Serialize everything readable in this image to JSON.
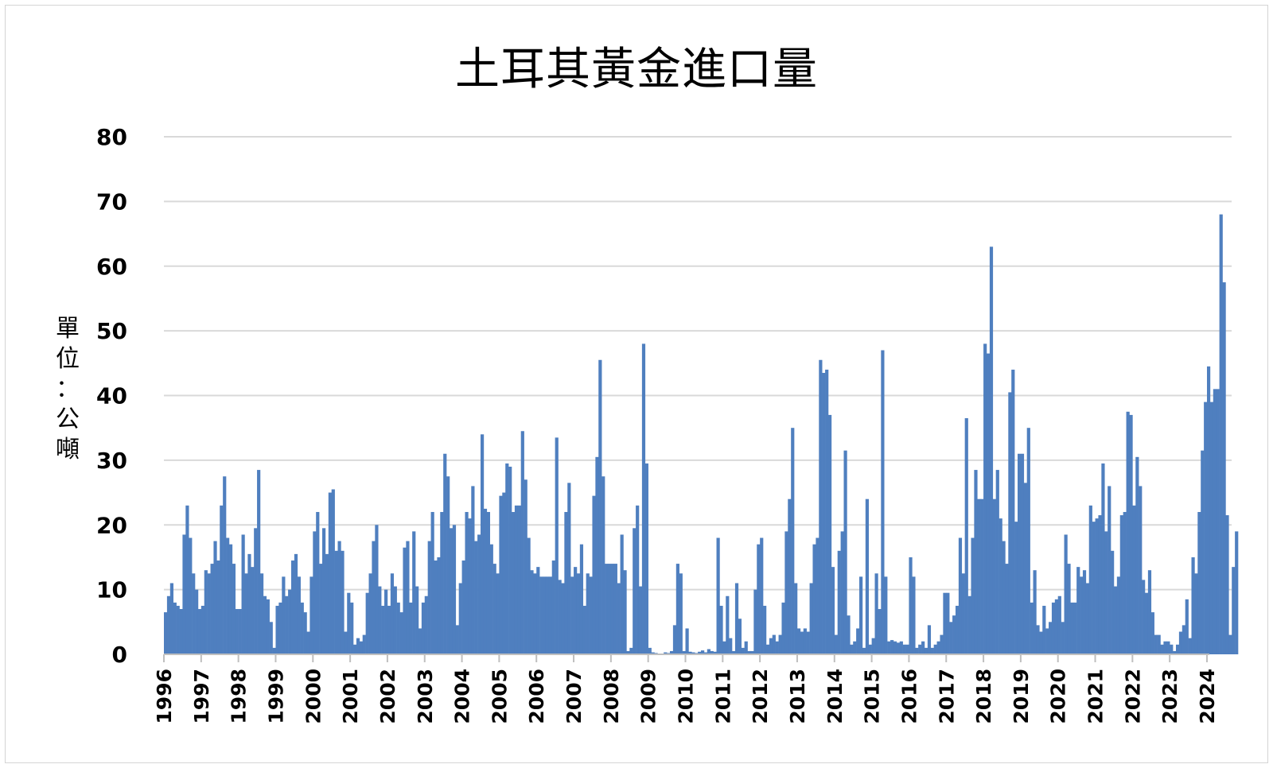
{
  "chart_data": {
    "type": "bar",
    "title": "土耳其黃金進口量",
    "ylabel": "單位：公噸",
    "ylim": [
      0,
      80
    ],
    "yticks": [
      0,
      10,
      20,
      30,
      40,
      50,
      60,
      70,
      80
    ],
    "grid": true,
    "legend": "none",
    "bar_color": "#4f7fbf",
    "x_start_year": 1996,
    "xtick_labels": [
      "1996",
      "1997",
      "1998",
      "1999",
      "2000",
      "2001",
      "2002",
      "2003",
      "2004",
      "2005",
      "2006",
      "2007",
      "2008",
      "2009",
      "2010",
      "2011",
      "2012",
      "2013",
      "2014",
      "2015",
      "2016",
      "2017",
      "2018",
      "2019",
      "2020",
      "2021",
      "2022",
      "2023",
      "2024"
    ],
    "series": [
      {
        "values": [
          6.5,
          9,
          11,
          8,
          7.5,
          7,
          18.5,
          23,
          18,
          12.5,
          10,
          7,
          7.5,
          13,
          12.5,
          14,
          17.5,
          14.5,
          23,
          27.5,
          18,
          17,
          14,
          7,
          7,
          18.5,
          12.5,
          15.5,
          13.5,
          19.5,
          28.5,
          12.5,
          9,
          8.5,
          5,
          1,
          7.5,
          8,
          12,
          9,
          10,
          14.5,
          15.5,
          12,
          8,
          6.5,
          3.5,
          12,
          19,
          22,
          14,
          19.5,
          15.5,
          25,
          25.5,
          16,
          17.5,
          16,
          3.5,
          9.5,
          8,
          1.5,
          2.5,
          2,
          3,
          9.5,
          12.5,
          17.5,
          20,
          10.5,
          7.5,
          10,
          7.5,
          12.5,
          10.5,
          8,
          6.5,
          16.5,
          17.5,
          8,
          19,
          10.5,
          4,
          8,
          9,
          17.5,
          22,
          14.5,
          15,
          22,
          31,
          27.5,
          19.5,
          20,
          4.5,
          11,
          14.5,
          22,
          21,
          26,
          17.5,
          18.5,
          34,
          22.5,
          22,
          17,
          14,
          12.5,
          24.5,
          25,
          29.5,
          29,
          22,
          23,
          23,
          34.5,
          27,
          18,
          13,
          12.5,
          13.5,
          12,
          12,
          12,
          12,
          14.5,
          33.5,
          11.5,
          11,
          22,
          26.5,
          12,
          13.5,
          12.5,
          17,
          7.5,
          12.5,
          12,
          24.5,
          30.5,
          45.5,
          27.5,
          14,
          14,
          14,
          14,
          11,
          18.5,
          13,
          0.5,
          1,
          19.5,
          23,
          10.5,
          48,
          29.5,
          1,
          0.3,
          0.2,
          0.1,
          0.1,
          0.3,
          0.2,
          0.5,
          4.5,
          14,
          12.5,
          0.5,
          4,
          0.4,
          0.3,
          0.2,
          0.4,
          0.6,
          0.3,
          0.8,
          0.5,
          0.4,
          18,
          7.5,
          2,
          9,
          2.5,
          0.5,
          11,
          5.5,
          1,
          2,
          0.5,
          0.5,
          10,
          17,
          18,
          7.5,
          1.5,
          2.5,
          3,
          2,
          3,
          8,
          19,
          24,
          35,
          11,
          4,
          3.5,
          4,
          3.5,
          11,
          17,
          18,
          45.5,
          43.5,
          44,
          37,
          13.5,
          3,
          16,
          19,
          31.5,
          6,
          1.5,
          2,
          4,
          12,
          1,
          24,
          1.5,
          2.5,
          12.5,
          7,
          47,
          12,
          2,
          2.2,
          2,
          1.8,
          2,
          1.5,
          1.5,
          15,
          12,
          1,
          1.5,
          2,
          1,
          4.5,
          1,
          1.5,
          2,
          3,
          9.5,
          9.5,
          5,
          6,
          7.5,
          18,
          12.5,
          36.5,
          9,
          18,
          28.5,
          24,
          24,
          48,
          46.5,
          63,
          24,
          28.5,
          21,
          17.5,
          14,
          40.5,
          44,
          20.5,
          31,
          31,
          26.5,
          35,
          8,
          13,
          4.5,
          3.5,
          7.5,
          4,
          5,
          8,
          8.5,
          9,
          5,
          18.5,
          14,
          8,
          8,
          13.5,
          12,
          13,
          11,
          23,
          20.5,
          21,
          21.5,
          29.5,
          19,
          26,
          16,
          10.5,
          12,
          21.5,
          22,
          37.5,
          37,
          23,
          30.5,
          26,
          11.5,
          9.5,
          13,
          6.5,
          3,
          3,
          1.5,
          2,
          2,
          1.5,
          0.5,
          1.5,
          3.5,
          4.5,
          8.5,
          2.5,
          15,
          12.5,
          22,
          31.5,
          39,
          44.5,
          39,
          41,
          41,
          68,
          57.5,
          21.5,
          3,
          13.5,
          19,
          0,
          0
        ]
      }
    ]
  }
}
